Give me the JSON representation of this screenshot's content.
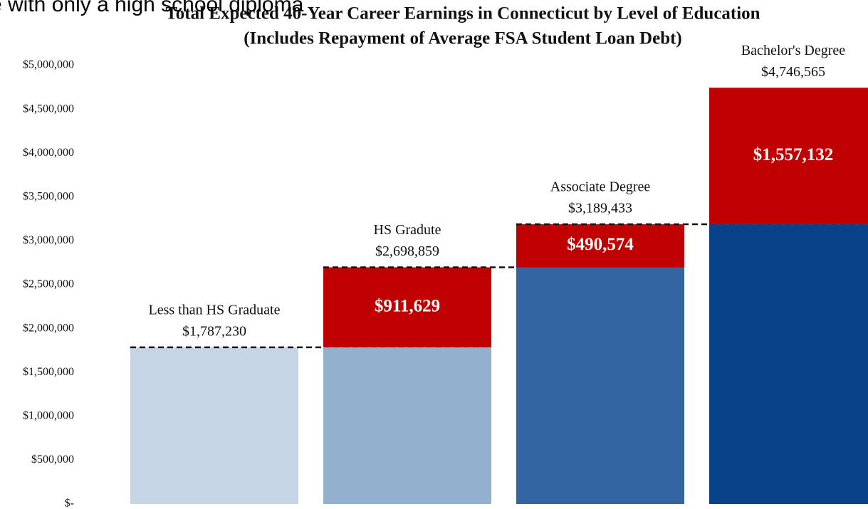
{
  "chart_data": {
    "type": "stacked_bar",
    "overlay_text": "e with only a high school diploma",
    "title": "Total Expected 40-Year Career Earnings in Connecticut by Level of Education",
    "subtitle": "(Includes Repayment of Average FSA Student Loan Debt)",
    "categories": [
      "Less than HS Graduate",
      "HS Gradute",
      "Associate Degree",
      "Bachelor's Degree"
    ],
    "totals": [
      1787230,
      2698859,
      3189433,
      4746565
    ],
    "total_labels": [
      "$1,787,230",
      "$2,698,859",
      "$3,189,433",
      "$4,746,565"
    ],
    "series": [
      {
        "colors": [
          "#c5d5e6",
          "#93b0cf",
          "#3465a3",
          "#0a428a"
        ],
        "values": [
          1787230,
          1787230,
          2698859,
          3189433
        ]
      },
      {
        "color": "#c00000",
        "values": [
          null,
          911629,
          490574,
          1557132
        ],
        "value_labels": [
          null,
          "$911,629",
          "$490,574",
          "$1,557,132"
        ]
      }
    ],
    "ylim": [
      0,
      5000000
    ],
    "yticks": [
      {
        "value": 0,
        "label": "$-"
      },
      {
        "value": 500000,
        "label": "$500,000"
      },
      {
        "value": 1000000,
        "label": "$1,000,000"
      },
      {
        "value": 1500000,
        "label": "$1,500,000"
      },
      {
        "value": 2000000,
        "label": "$2,000,000"
      },
      {
        "value": 2500000,
        "label": "$2,500,000"
      },
      {
        "value": 3000000,
        "label": "$3,000,000"
      },
      {
        "value": 3500000,
        "label": "$3,500,000"
      },
      {
        "value": 4000000,
        "label": "$4,000,000"
      },
      {
        "value": 4500000,
        "label": "$4,500,000"
      },
      {
        "value": 5000000,
        "label": "$5,000,000"
      }
    ],
    "grid": false
  }
}
